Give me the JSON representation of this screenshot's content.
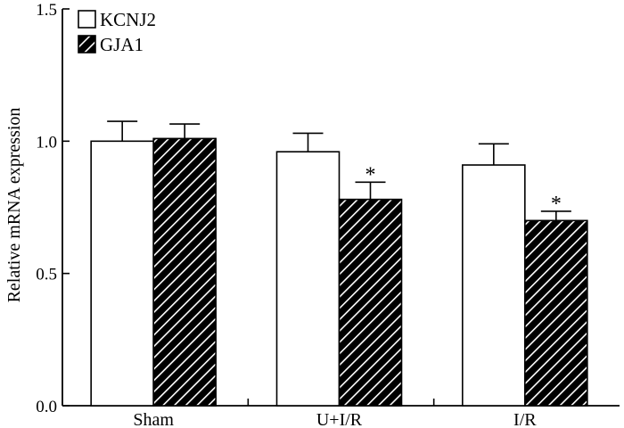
{
  "chart_data": {
    "type": "bar",
    "title": "",
    "xlabel": "",
    "ylabel": "Relative mRNA expression",
    "ylim": [
      0,
      1.5
    ],
    "yticks": [
      0.0,
      0.5,
      1.0,
      1.5
    ],
    "ytick_labels": [
      "0.0",
      "0.5",
      "1.0",
      "1.5"
    ],
    "categories": [
      "Sham",
      "U+I/R",
      "I/R"
    ],
    "series": [
      {
        "name": "KCNJ2",
        "fill": "white",
        "values": [
          1.0,
          0.96,
          0.91
        ],
        "errors": [
          0.075,
          0.07,
          0.08
        ],
        "annotations": [
          "",
          "",
          ""
        ]
      },
      {
        "name": "GJA1",
        "fill": "hatched",
        "values": [
          1.01,
          0.78,
          0.7
        ],
        "errors": [
          0.055,
          0.065,
          0.035
        ],
        "annotations": [
          "",
          "*",
          "*"
        ]
      }
    ],
    "legend_position": "top-left",
    "grid": false
  }
}
